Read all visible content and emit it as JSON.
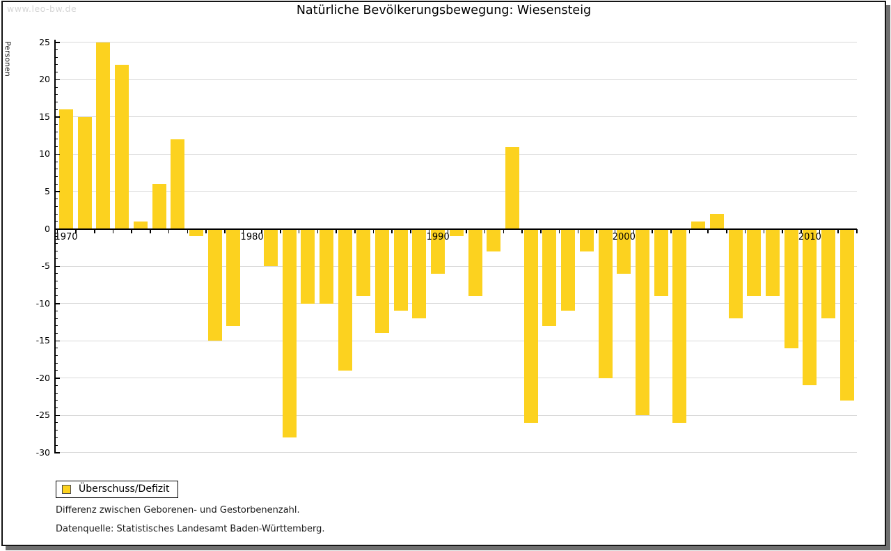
{
  "watermark": "www.leo-bw.de",
  "title": "Natürliche Bevölkerungsbewegung: Wiesensteig",
  "y_axis_label": "Personen",
  "legend": {
    "label": "Überschuss/Defizit"
  },
  "footnotes": [
    "Differenz zwischen Geborenen- und Gestorbenenzahl.",
    "Datenquelle: Statistisches Landesamt Baden-Württemberg."
  ],
  "colors": {
    "bar": "#fcd21f",
    "grid": "#d9d9d9",
    "axis": "#000000",
    "watermark": "#d6d6d6",
    "swatch_border": "#4d4d4d",
    "frame_shadow": "#6f6f6f"
  },
  "chart_data": {
    "type": "bar",
    "title": "Natürliche Bevölkerungsbewegung: Wiesensteig",
    "xlabel": "",
    "ylabel": "Personen",
    "ylim": [
      -30,
      25
    ],
    "y_major_tick_step": 5,
    "y_minor_tick_step": 1,
    "grid": true,
    "legend_position": "bottom-left",
    "series_name": "Überschuss/Defizit",
    "bar_color": "#fcd21f",
    "y_tick_labels": [
      "25",
      "20",
      "15",
      "10",
      "5",
      "0",
      "-5",
      "-10",
      "-15",
      "-20",
      "-25",
      "-30"
    ],
    "x_decade_labels": [
      {
        "label": "1970",
        "year": 1970
      },
      {
        "label": "1980",
        "year": 1980
      },
      {
        "label": "1990",
        "year": 1990
      },
      {
        "label": "2000",
        "year": 2000
      },
      {
        "label": "2010",
        "year": 2010
      }
    ],
    "categories": [
      1970,
      1971,
      1972,
      1973,
      1974,
      1975,
      1976,
      1977,
      1978,
      1979,
      1980,
      1981,
      1982,
      1983,
      1984,
      1985,
      1986,
      1987,
      1988,
      1989,
      1990,
      1991,
      1992,
      1993,
      1994,
      1995,
      1996,
      1997,
      1998,
      1999,
      2000,
      2001,
      2002,
      2003,
      2004,
      2005,
      2006,
      2007,
      2008,
      2009,
      2010,
      2011,
      2012
    ],
    "values": [
      16,
      15,
      25,
      22,
      1,
      6,
      12,
      -1,
      -15,
      -13,
      0,
      -5,
      -28,
      -10,
      -10,
      -19,
      -9,
      -14,
      -11,
      -12,
      -6,
      -1,
      -9,
      -3,
      11,
      -26,
      -13,
      -11,
      -3,
      -20,
      -6,
      -25,
      -9,
      -26,
      1,
      2,
      -12,
      -9,
      -9,
      -16,
      -21,
      -12,
      -23
    ]
  }
}
